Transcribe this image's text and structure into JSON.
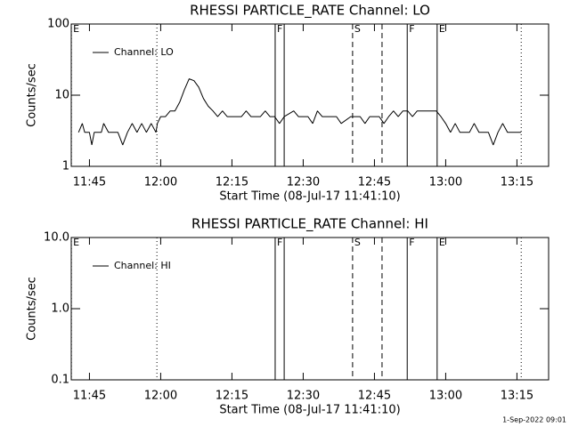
{
  "chart_data": [
    {
      "type": "line",
      "title": "RHESSI PARTICLE_RATE Channel: LO",
      "xlabel": "Start Time (08-Jul-17 11:41:10)",
      "ylabel": "Counts/sec",
      "log_y": true,
      "legend": "upper left",
      "xlim": [
        701.17,
        801.67
      ],
      "xticks": [
        {
          "value": 705,
          "label": "11:45"
        },
        {
          "value": 720,
          "label": "12:00"
        },
        {
          "value": 735,
          "label": "12:15"
        },
        {
          "value": 750,
          "label": "12:30"
        },
        {
          "value": 765,
          "label": "12:45"
        },
        {
          "value": 780,
          "label": "13:00"
        },
        {
          "value": 795,
          "label": "13:15"
        }
      ],
      "ylim": [
        1,
        100
      ],
      "yticks": [
        1,
        10,
        100
      ],
      "x": [
        702.7,
        703.5,
        704,
        705,
        705.5,
        706,
        707.5,
        708,
        709,
        711,
        712,
        713,
        714,
        715,
        716,
        717,
        718,
        719,
        719.3,
        720,
        721,
        722,
        723,
        724,
        725,
        726,
        727,
        728,
        729,
        730,
        731,
        732,
        733,
        734,
        735,
        737,
        738,
        739,
        741,
        742,
        743,
        744,
        745,
        746,
        748,
        749,
        751,
        752,
        753,
        754,
        757,
        758,
        760,
        762,
        763,
        764,
        766,
        767,
        768,
        769,
        770,
        771,
        772,
        773,
        774,
        775,
        778,
        779,
        780,
        781,
        782,
        783,
        785,
        786,
        787,
        789,
        790,
        791,
        792,
        793,
        795.9
      ],
      "series": [
        {
          "name": "Channel: LO",
          "color": "#000000",
          "values": [
            3,
            4,
            3,
            3,
            2,
            3,
            3,
            4,
            3,
            3,
            2,
            3,
            4,
            3,
            4,
            3,
            4,
            3,
            4,
            5,
            5,
            6,
            6,
            8,
            12,
            17,
            16,
            13,
            9,
            7,
            6,
            5,
            6,
            5,
            5,
            5,
            6,
            5,
            5,
            6,
            5,
            5,
            4,
            5,
            6,
            5,
            5,
            4,
            6,
            5,
            5,
            4,
            5,
            5,
            4,
            5,
            5,
            4,
            5,
            6,
            5,
            6,
            6,
            5,
            6,
            6,
            6,
            5,
            4,
            3,
            4,
            3,
            3,
            4,
            3,
            3,
            2,
            3,
            4,
            3,
            3
          ]
        }
      ],
      "markers": [
        {
          "x": 701.2,
          "style": "dotted",
          "label": "E"
        },
        {
          "x": 719.2,
          "style": "dotted"
        },
        {
          "x": 744.1,
          "style": "solid",
          "label": "F"
        },
        {
          "x": 746.0,
          "style": "solid"
        },
        {
          "x": 760.4,
          "style": "dashed",
          "label": "S"
        },
        {
          "x": 766.6,
          "style": "dashed"
        },
        {
          "x": 771.9,
          "style": "solid",
          "label": "F"
        },
        {
          "x": 778.2,
          "style": "solid",
          "label": "E"
        },
        {
          "x": 795.9,
          "style": "dotted"
        }
      ]
    },
    {
      "type": "line",
      "title": "RHESSI PARTICLE_RATE Channel: HI",
      "xlabel": "Start Time (08-Jul-17 11:41:10)",
      "ylabel": "Counts/sec",
      "log_y": true,
      "legend": "upper left",
      "xlim": [
        701.17,
        801.67
      ],
      "xticks": [
        {
          "value": 705,
          "label": "11:45"
        },
        {
          "value": 720,
          "label": "12:00"
        },
        {
          "value": 735,
          "label": "12:15"
        },
        {
          "value": 750,
          "label": "12:30"
        },
        {
          "value": 765,
          "label": "12:45"
        },
        {
          "value": 780,
          "label": "13:00"
        },
        {
          "value": 795,
          "label": "13:15"
        }
      ],
      "ylim": [
        0.1,
        10
      ],
      "yticks": [
        0.1,
        {
          "value": 1,
          "label": "1.0"
        },
        {
          "value": 10,
          "label": "10.0"
        }
      ],
      "x": [],
      "series": [
        {
          "name": "Channel: HI",
          "color": "#000000",
          "values": []
        }
      ],
      "markers": [
        {
          "x": 701.2,
          "style": "dotted",
          "label": "E"
        },
        {
          "x": 719.2,
          "style": "dotted"
        },
        {
          "x": 744.1,
          "style": "solid",
          "label": "F"
        },
        {
          "x": 746.0,
          "style": "solid"
        },
        {
          "x": 760.4,
          "style": "dashed",
          "label": "S"
        },
        {
          "x": 766.6,
          "style": "dashed"
        },
        {
          "x": 771.9,
          "style": "solid",
          "label": "F"
        },
        {
          "x": 778.2,
          "style": "solid",
          "label": "E"
        },
        {
          "x": 795.9,
          "style": "dotted"
        }
      ]
    }
  ],
  "footer": "1-Sep-2022 09:01"
}
